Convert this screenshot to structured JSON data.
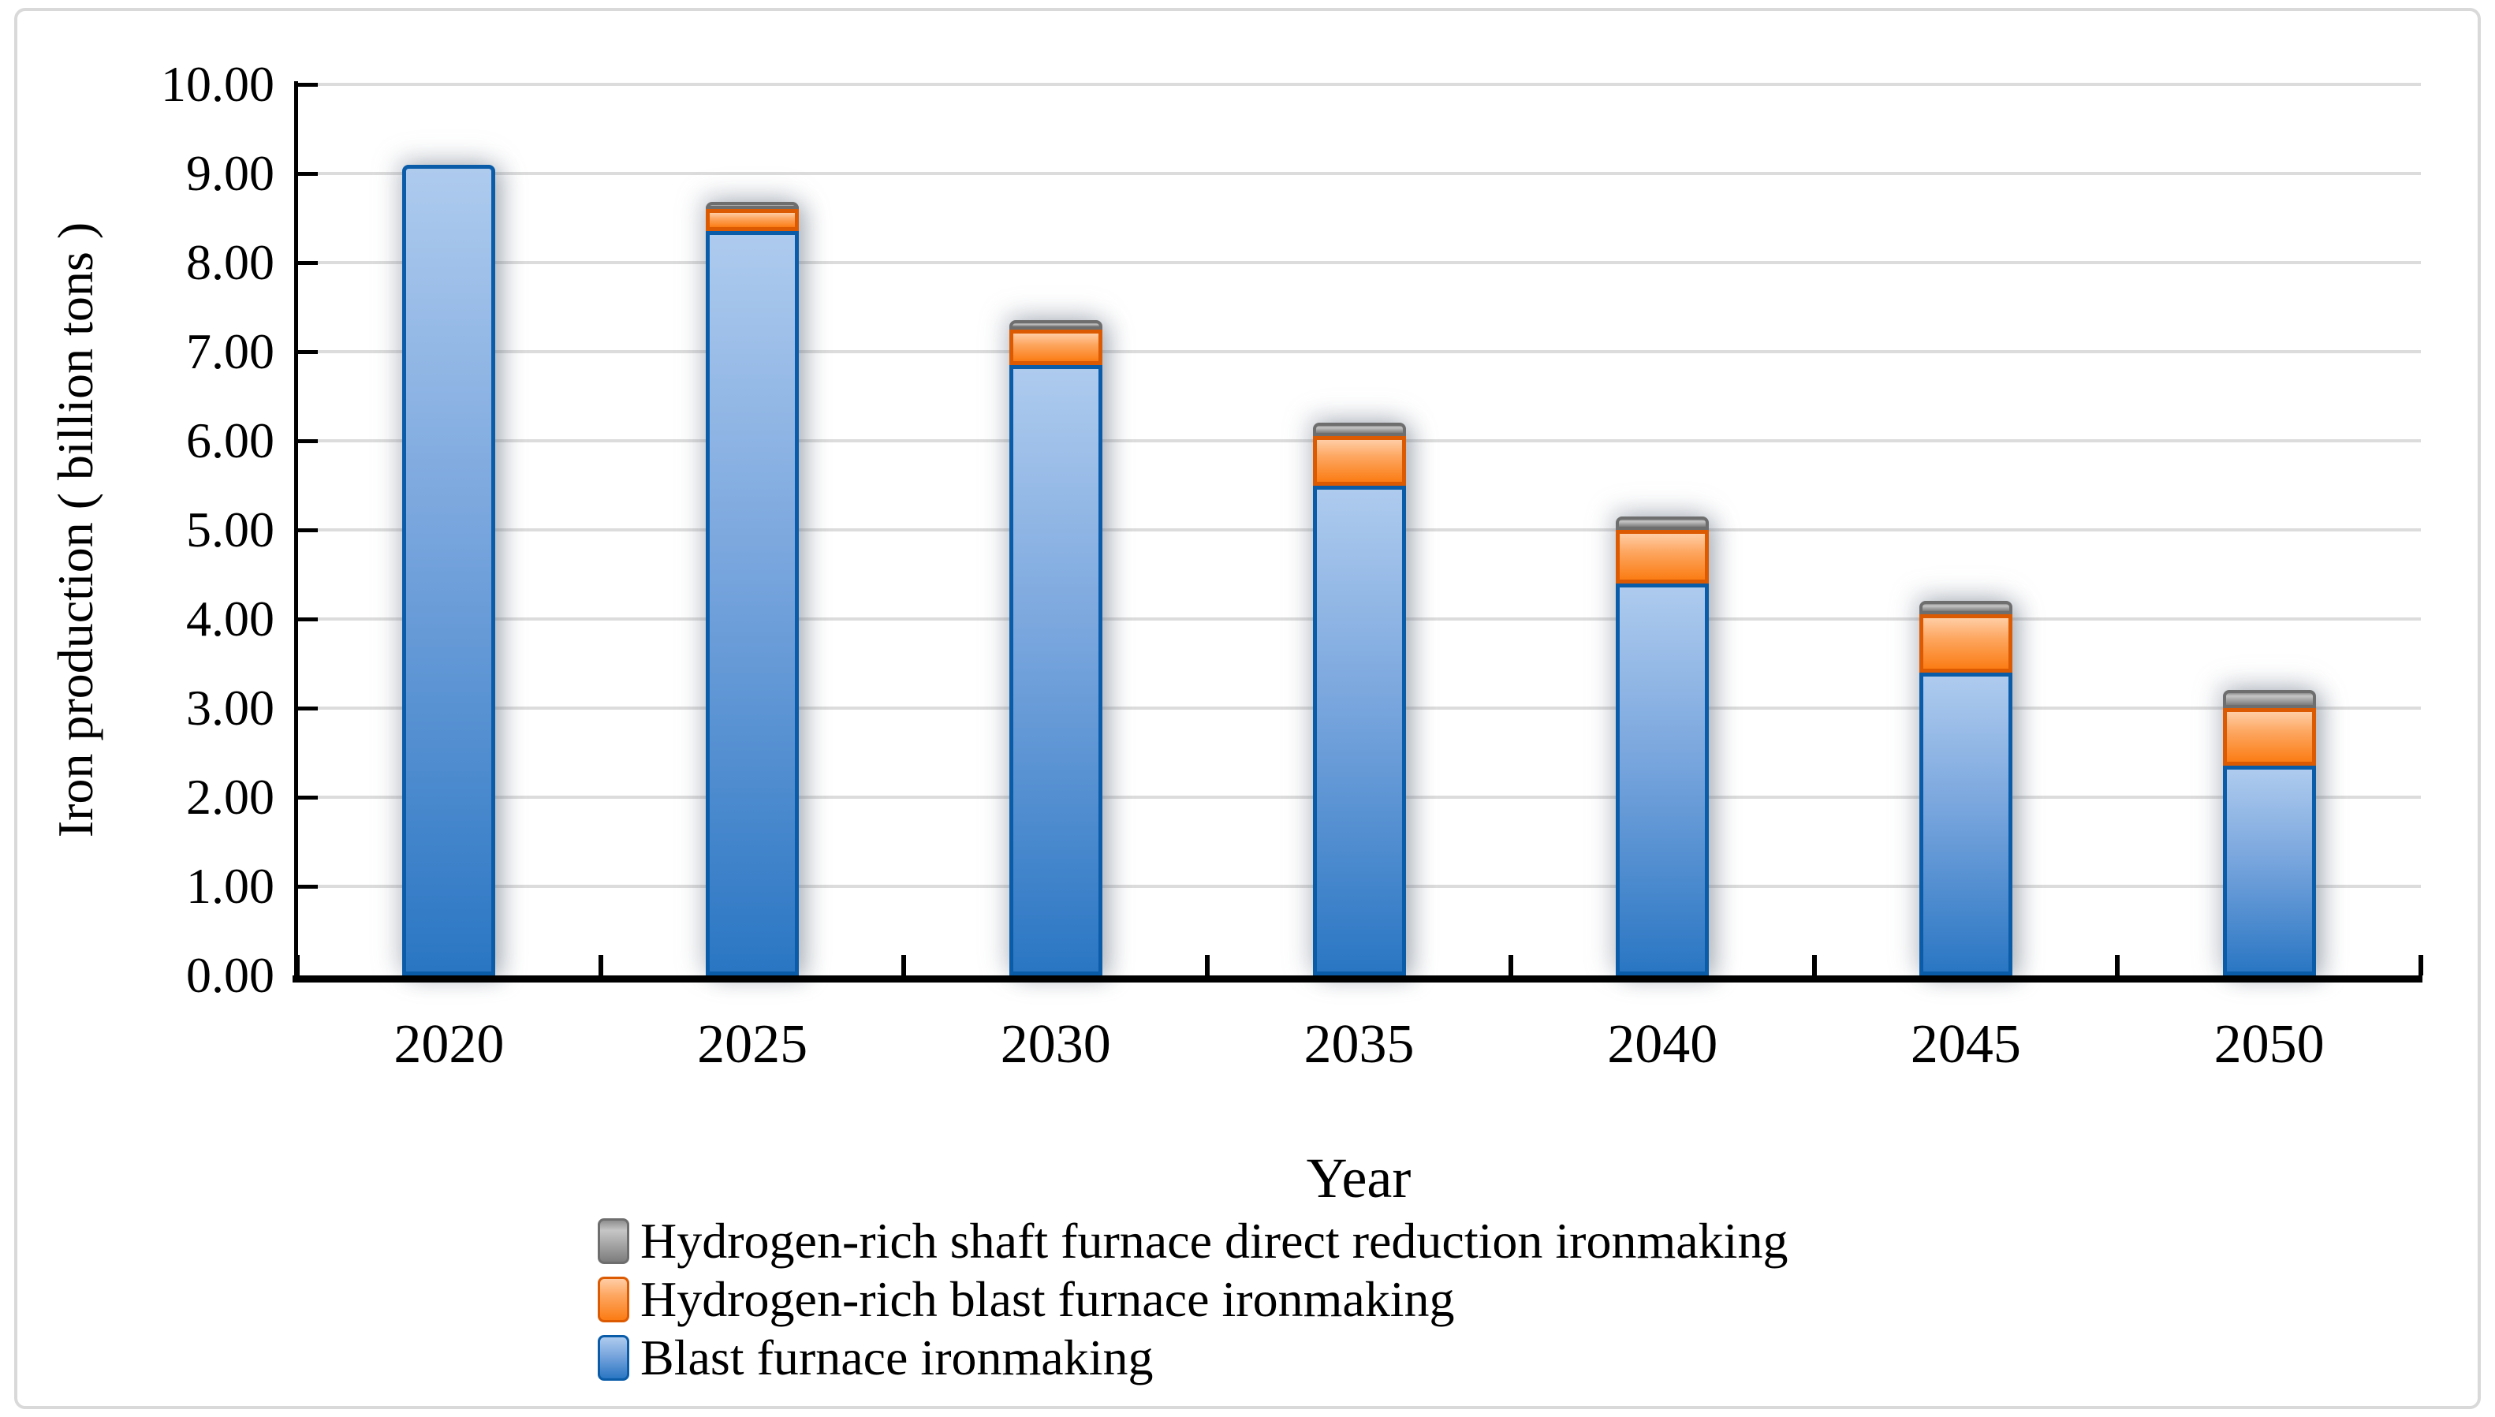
{
  "figure": {
    "xlabel": "Year",
    "ylabel": "Iron production ( billion tons )",
    "background": "#FFFFFF",
    "border_color": "#D9D9D9"
  },
  "chart_data": {
    "type": "bar",
    "stacked": true,
    "title": "",
    "xlabel": "Year",
    "ylabel": "Iron production ( billion tons )",
    "categories": [
      "2020",
      "2025",
      "2030",
      "2035",
      "2040",
      "2045",
      "2050"
    ],
    "series": [
      {
        "name": "Blast furnace ironmaking",
        "key": "blue",
        "values": [
          9.1,
          8.35,
          6.85,
          5.5,
          4.4,
          3.4,
          2.35
        ]
      },
      {
        "name": "Hydrogen-rich blast furnace ironmaking",
        "key": "orange",
        "values": [
          0.0,
          0.25,
          0.4,
          0.55,
          0.6,
          0.65,
          0.65
        ]
      },
      {
        "name": "Hydrogen-rich shaft furnace direct reduction ironmaking",
        "key": "gray",
        "values": [
          0.0,
          0.05,
          0.1,
          0.15,
          0.15,
          0.15,
          0.2
        ]
      }
    ],
    "ylim": [
      0,
      10
    ],
    "y_ticks": [
      "0.00",
      "1.00",
      "2.00",
      "3.00",
      "4.00",
      "5.00",
      "6.00",
      "7.00",
      "8.00",
      "9.00",
      "10.00"
    ],
    "grid": true,
    "gridline_color": "#DCDCDC",
    "axis_color": "#000000",
    "legend_position": "bottom",
    "styles": {
      "blue": {
        "border": "#0A5CA9",
        "fill_top": "#AECBEE",
        "fill_mid": "#78A5DD",
        "fill_bottom": "#2A76C3"
      },
      "orange": {
        "border": "#DB5A02",
        "fill_top": "#FFCDA5",
        "fill_mid": "#FDA660",
        "fill_bottom": "#FB7C14"
      },
      "gray": {
        "border": "#6E6E6E",
        "fill_top": "#8F8F8F",
        "fill_mid": "#C6C6C6",
        "fill_bottom": "#7D7D7D"
      }
    }
  },
  "legend": {
    "items": [
      {
        "label": "Hydrogen-rich shaft furnace direct reduction ironmaking",
        "key": "gray"
      },
      {
        "label": "Hydrogen-rich blast furnace ironmaking",
        "key": "orange"
      },
      {
        "label": "Blast furnace ironmaking",
        "key": "blue"
      }
    ]
  }
}
